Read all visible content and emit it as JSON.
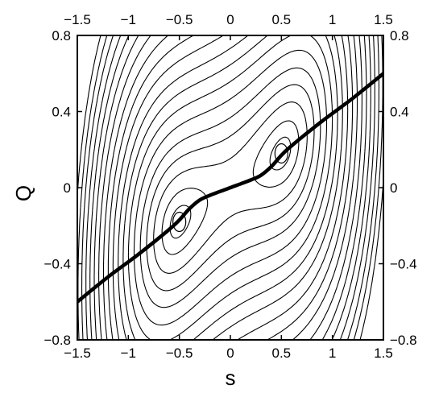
{
  "chart_data": {
    "type": "contour",
    "title": "",
    "xlabel": "s",
    "ylabel": "Q",
    "xlim": [
      -1.6,
      1.6
    ],
    "ylim": [
      -0.85,
      0.85
    ],
    "frame_xlim": [
      -1.5,
      1.5
    ],
    "frame_ylim": [
      -0.8,
      0.8
    ],
    "x_ticks": [
      -1.5,
      -1,
      -0.5,
      0,
      0.5,
      1,
      1.5
    ],
    "x_tick_labels": [
      "−1.5",
      "−1",
      "−0.5",
      "0",
      "0.5",
      "1",
      "1.5"
    ],
    "y_ticks": [
      0.8,
      0.4,
      0,
      -0.4,
      -0.8
    ],
    "y_tick_labels": [
      "0.8",
      "0.4",
      "0",
      "−0.4",
      "−0.8"
    ],
    "axes_mirrored": true,
    "grid": false,
    "legend": "none",
    "minima": [
      {
        "s": -0.5,
        "Q": -0.18
      },
      {
        "s": 0.5,
        "Q": 0.18
      }
    ],
    "saddle": {
      "s": 0,
      "Q": 0
    },
    "contour_levels_solid": [
      0.05,
      0.5,
      1.4,
      2.8,
      4.6,
      7,
      10,
      13.5,
      17.5,
      22
    ],
    "contour_levels_dashed": [
      0.2,
      0.9,
      2.05,
      3.65,
      5.75,
      8.4,
      11.7,
      15.4,
      19.6
    ],
    "path": {
      "style": "thick-solid",
      "s": [
        -1.5,
        -1.2,
        -0.9,
        -0.6,
        -0.5,
        -0.4,
        -0.3,
        -0.2,
        -0.1,
        0,
        0.1,
        0.2,
        0.3,
        0.4,
        0.5,
        0.6,
        0.9,
        1.2,
        1.5
      ],
      "Q": [
        -0.6,
        -0.47,
        -0.35,
        -0.22,
        -0.17,
        -0.11,
        -0.065,
        -0.04,
        -0.02,
        0,
        0.02,
        0.04,
        0.065,
        0.11,
        0.17,
        0.22,
        0.35,
        0.47,
        0.6
      ]
    }
  }
}
